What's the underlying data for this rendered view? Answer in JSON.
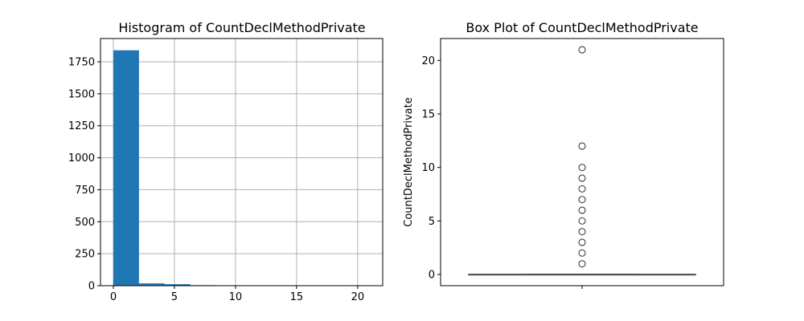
{
  "chart_data": [
    {
      "type": "bar",
      "title": "Histogram of CountDeclMethodPrivate",
      "xlabel": "",
      "ylabel": "",
      "grid": true,
      "bins": [
        {
          "start": 0.0,
          "end": 2.1,
          "count": 1840
        },
        {
          "start": 2.1,
          "end": 4.2,
          "count": 18
        },
        {
          "start": 4.2,
          "end": 6.3,
          "count": 12
        },
        {
          "start": 6.3,
          "end": 8.4,
          "count": 4
        },
        {
          "start": 8.4,
          "end": 10.5,
          "count": 1
        },
        {
          "start": 10.5,
          "end": 12.6,
          "count": 1
        },
        {
          "start": 12.6,
          "end": 14.7,
          "count": 0
        },
        {
          "start": 14.7,
          "end": 16.8,
          "count": 0
        },
        {
          "start": 16.8,
          "end": 18.9,
          "count": 0
        },
        {
          "start": 18.9,
          "end": 21.0,
          "count": 1
        }
      ],
      "xlim": [
        -1.05,
        22.05
      ],
      "ylim": [
        0,
        1932
      ],
      "xticks": [
        0,
        5,
        10,
        15,
        20
      ],
      "xtick_labels": [
        "0",
        "5",
        "10",
        "15",
        "20"
      ],
      "yticks": [
        0,
        250,
        500,
        750,
        1000,
        1250,
        1500,
        1750
      ],
      "ytick_labels": [
        "0",
        "250",
        "500",
        "750",
        "1000",
        "1250",
        "1500",
        "1750"
      ],
      "bar_color": "#1f77b4"
    },
    {
      "type": "box",
      "title": "Box Plot of CountDeclMethodPrivate",
      "xlabel": "",
      "ylabel": "CountDeclMethodPrivate",
      "grid": false,
      "stats": {
        "min": 0,
        "q1": 0,
        "median": 0,
        "q3": 0,
        "max": 0
      },
      "outliers": [
        1,
        2,
        3,
        4,
        5,
        6,
        7,
        8,
        9,
        10,
        12,
        21
      ],
      "ylim": [
        -1.05,
        22.05
      ],
      "yticks": [
        0,
        5,
        10,
        15,
        20
      ],
      "ytick_labels": [
        "0",
        "5",
        "10",
        "15",
        "20"
      ],
      "box_color": "#4d4d4d"
    }
  ]
}
